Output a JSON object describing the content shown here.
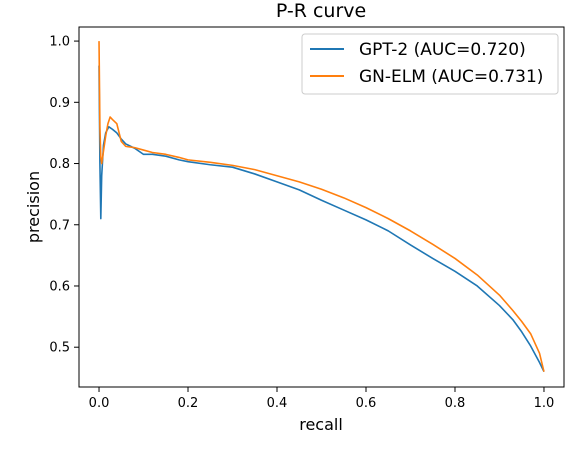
{
  "chart_data": {
    "type": "line",
    "title": "P-R curve",
    "xlabel": "recall",
    "ylabel": "precision",
    "xlim": [
      -0.045,
      1.045
    ],
    "ylim": [
      0.435,
      1.023
    ],
    "xticks": [
      0.0,
      0.2,
      0.4,
      0.6,
      0.8,
      1.0
    ],
    "xtick_labels": [
      "0.0",
      "0.2",
      "0.4",
      "0.6",
      "0.8",
      "1.0"
    ],
    "yticks": [
      0.5,
      0.6,
      0.7,
      0.8,
      0.9,
      1.0
    ],
    "ytick_labels": [
      "0.5",
      "0.6",
      "0.7",
      "0.8",
      "0.9",
      "1.0"
    ],
    "grid": false,
    "legend_position": "top-right",
    "series": [
      {
        "name": "GPT-2 (AUC=0.720)",
        "color": "#1f77b4",
        "x": [
          0.0,
          0.002,
          0.004,
          0.006,
          0.01,
          0.015,
          0.022,
          0.03,
          0.04,
          0.05,
          0.06,
          0.08,
          0.1,
          0.12,
          0.15,
          0.18,
          0.2,
          0.25,
          0.3,
          0.35,
          0.4,
          0.45,
          0.5,
          0.55,
          0.6,
          0.65,
          0.7,
          0.75,
          0.8,
          0.85,
          0.9,
          0.93,
          0.95,
          0.97,
          0.99,
          1.0
        ],
        "y": [
          0.96,
          0.8,
          0.71,
          0.78,
          0.83,
          0.85,
          0.86,
          0.856,
          0.85,
          0.84,
          0.832,
          0.825,
          0.815,
          0.815,
          0.812,
          0.806,
          0.803,
          0.798,
          0.794,
          0.783,
          0.77,
          0.757,
          0.74,
          0.724,
          0.708,
          0.69,
          0.667,
          0.645,
          0.624,
          0.6,
          0.568,
          0.545,
          0.525,
          0.502,
          0.475,
          0.46
        ]
      },
      {
        "name": "GN-ELM (AUC=0.731)",
        "color": "#ff7f0e",
        "x": [
          0.0,
          0.002,
          0.004,
          0.006,
          0.01,
          0.015,
          0.02,
          0.025,
          0.03,
          0.04,
          0.05,
          0.06,
          0.08,
          0.1,
          0.12,
          0.15,
          0.18,
          0.2,
          0.25,
          0.3,
          0.35,
          0.4,
          0.45,
          0.5,
          0.55,
          0.6,
          0.65,
          0.7,
          0.75,
          0.8,
          0.85,
          0.9,
          0.93,
          0.95,
          0.97,
          0.99,
          1.0
        ],
        "y": [
          1.0,
          0.86,
          0.81,
          0.8,
          0.82,
          0.845,
          0.865,
          0.876,
          0.872,
          0.865,
          0.836,
          0.828,
          0.826,
          0.822,
          0.818,
          0.815,
          0.81,
          0.806,
          0.802,
          0.797,
          0.79,
          0.78,
          0.77,
          0.758,
          0.744,
          0.728,
          0.71,
          0.69,
          0.668,
          0.645,
          0.618,
          0.585,
          0.56,
          0.542,
          0.522,
          0.49,
          0.46
        ]
      }
    ]
  }
}
